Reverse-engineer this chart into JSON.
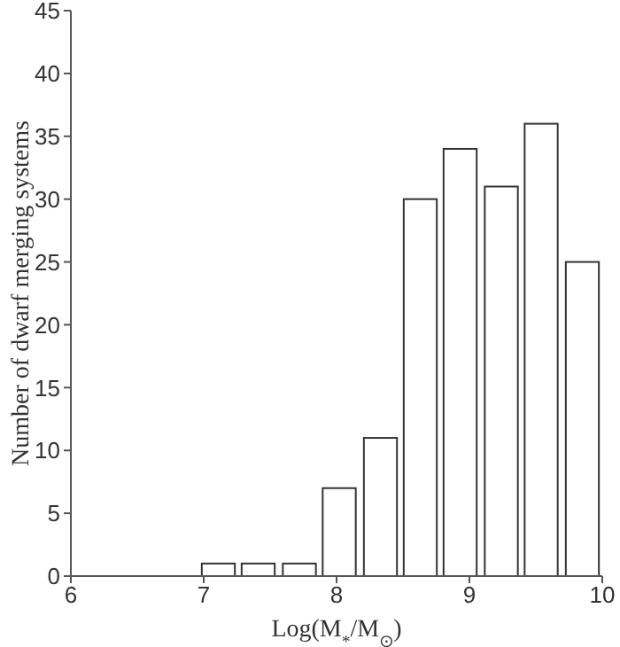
{
  "chart_data": {
    "type": "bar",
    "xlabel": "Log(M$_{*}$/M$_{⊙}$)",
    "ylabel": "Number of dwarf merging systems",
    "x": [
      7.11,
      7.41,
      7.72,
      8.02,
      8.33,
      8.63,
      8.93,
      9.24,
      9.54,
      9.85
    ],
    "values": [
      1,
      1,
      1,
      7,
      11,
      30,
      34,
      31,
      36,
      25
    ],
    "color": "#ffffff",
    "xlim": [
      6,
      10
    ],
    "xticks": [
      6,
      7,
      8,
      9,
      10
    ],
    "ylim": [
      0,
      45
    ],
    "yticks": [
      0,
      5,
      10,
      15,
      20,
      25,
      30,
      35,
      40,
      45
    ],
    "grid": false,
    "legend": false
  }
}
